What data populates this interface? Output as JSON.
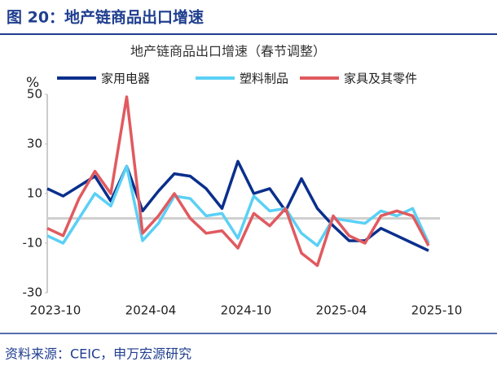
{
  "header": {
    "title": "图 20：地产链商品出口增速"
  },
  "chart_data": {
    "type": "line",
    "title": "地产链商品出口增速（春节调整）",
    "ylabel": "%",
    "categories": [
      "2023-10",
      null,
      null,
      null,
      null,
      null,
      "2024-04",
      null,
      null,
      null,
      null,
      null,
      "2024-10",
      null,
      null,
      null,
      null,
      null,
      "2025-04",
      null,
      null,
      null,
      null,
      null,
      "2025-10"
    ],
    "series": [
      {
        "name": "家用电器",
        "color": "#0a2f8c",
        "values": [
          12,
          9,
          13,
          17,
          7,
          21,
          3,
          11,
          18,
          17,
          12,
          4,
          23,
          10,
          12,
          3,
          16,
          4,
          -3,
          -9,
          -9,
          -4,
          -7,
          -10,
          -13
        ]
      },
      {
        "name": "塑料制品",
        "color": "#5bd0f5",
        "values": [
          -7,
          -10,
          0,
          10,
          5,
          21,
          -9,
          -2,
          9,
          8,
          1,
          2,
          -8,
          9,
          3,
          4,
          -6,
          -11,
          0,
          -1,
          -2,
          3,
          1,
          4,
          -10
        ]
      },
      {
        "name": "家具及其零件",
        "color": "#e05a5f",
        "values": [
          -4,
          -7,
          8,
          19,
          10,
          49,
          -6,
          1,
          10,
          0,
          -6,
          -5,
          -12,
          2,
          -3,
          4,
          -14,
          -19,
          1,
          -7,
          -10,
          1,
          3,
          1,
          -11
        ]
      }
    ],
    "ylim": [
      -30,
      50
    ],
    "yticks": [
      -30,
      -10,
      10,
      30,
      50
    ],
    "grid": false
  },
  "footer": {
    "source": "资料来源：CEIC，申万宏源研究"
  }
}
